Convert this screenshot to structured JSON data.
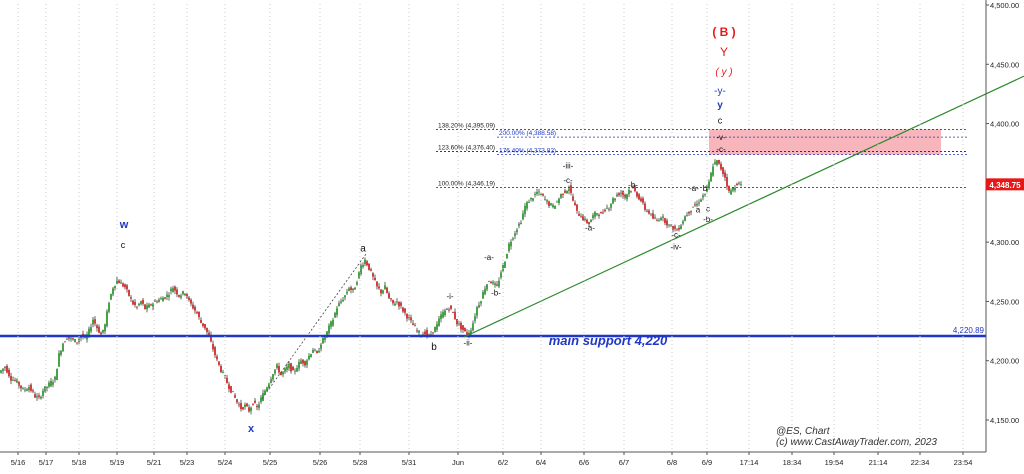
{
  "chart_data": {
    "type": "candlestick",
    "symbol": "@ES, Chart",
    "copyright": "(c) www.CastAwayTrader.com, 2023",
    "ylim": [
      4125,
      4500
    ],
    "y_ticks": [
      "4,500.00",
      "4,450.00",
      "4,400.00",
      "4,350.00",
      "4,300.00",
      "4,250.00",
      "4,200.00",
      "4,150.00"
    ],
    "x_ticks": [
      "5/16",
      "5/17",
      "5/18",
      "5/19",
      "5/21",
      "5/23",
      "5/24",
      "5/25",
      "5/26",
      "5/28",
      "5/31",
      "Jun",
      "6/2",
      "6/4",
      "6/6",
      "6/7",
      "6/8",
      "6/9",
      "17:14",
      "18:34",
      "19:54",
      "21:14",
      "22:34",
      "23:54"
    ],
    "price_path": [
      [
        0,
        4190
      ],
      [
        6,
        4195
      ],
      [
        12,
        4185
      ],
      [
        18,
        4182
      ],
      [
        24,
        4175
      ],
      [
        30,
        4178
      ],
      [
        36,
        4170
      ],
      [
        40,
        4168
      ],
      [
        44,
        4175
      ],
      [
        50,
        4180
      ],
      [
        56,
        4185
      ],
      [
        60,
        4205
      ],
      [
        64,
        4215
      ],
      [
        68,
        4220
      ],
      [
        72,
        4218
      ],
      [
        78,
        4216
      ],
      [
        82,
        4222
      ],
      [
        86,
        4218
      ],
      [
        90,
        4225
      ],
      [
        94,
        4235
      ],
      [
        98,
        4228
      ],
      [
        102,
        4222
      ],
      [
        106,
        4230
      ],
      [
        110,
        4250
      ],
      [
        114,
        4262
      ],
      [
        118,
        4268
      ],
      [
        122,
        4265
      ],
      [
        126,
        4262
      ],
      [
        130,
        4255
      ],
      [
        134,
        4248
      ],
      [
        138,
        4245
      ],
      [
        142,
        4250
      ],
      [
        146,
        4244
      ],
      [
        150,
        4246
      ],
      [
        156,
        4250
      ],
      [
        162,
        4252
      ],
      [
        168,
        4255
      ],
      [
        174,
        4262
      ],
      [
        180,
        4255
      ],
      [
        186,
        4258
      ],
      [
        190,
        4250
      ],
      [
        194,
        4245
      ],
      [
        198,
        4240
      ],
      [
        202,
        4232
      ],
      [
        206,
        4228
      ],
      [
        210,
        4220
      ],
      [
        214,
        4210
      ],
      [
        218,
        4200
      ],
      [
        222,
        4192
      ],
      [
        226,
        4185
      ],
      [
        230,
        4178
      ],
      [
        234,
        4172
      ],
      [
        238,
        4165
      ],
      [
        242,
        4160
      ],
      [
        246,
        4162
      ],
      [
        250,
        4158
      ],
      [
        254,
        4165
      ],
      [
        258,
        4160
      ],
      [
        262,
        4168
      ],
      [
        266,
        4175
      ],
      [
        270,
        4182
      ],
      [
        274,
        4190
      ],
      [
        278,
        4195
      ],
      [
        282,
        4188
      ],
      [
        286,
        4192
      ],
      [
        290,
        4196
      ],
      [
        294,
        4190
      ],
      [
        298,
        4195
      ],
      [
        302,
        4200
      ],
      [
        306,
        4198
      ],
      [
        310,
        4204
      ],
      [
        314,
        4210
      ],
      [
        318,
        4205
      ],
      [
        322,
        4215
      ],
      [
        326,
        4220
      ],
      [
        330,
        4228
      ],
      [
        334,
        4235
      ],
      [
        338,
        4245
      ],
      [
        342,
        4250
      ],
      [
        346,
        4255
      ],
      [
        350,
        4262
      ],
      [
        354,
        4258
      ],
      [
        358,
        4268
      ],
      [
        362,
        4280
      ],
      [
        366,
        4285
      ],
      [
        370,
        4278
      ],
      [
        374,
        4270
      ],
      [
        378,
        4262
      ],
      [
        382,
        4258
      ],
      [
        386,
        4262
      ],
      [
        390,
        4252
      ],
      [
        394,
        4248
      ],
      [
        398,
        4250
      ],
      [
        402,
        4245
      ],
      [
        406,
        4240
      ],
      [
        410,
        4235
      ],
      [
        414,
        4230
      ],
      [
        418,
        4225
      ],
      [
        422,
        4222
      ],
      [
        426,
        4224
      ],
      [
        430,
        4220
      ],
      [
        434,
        4225
      ],
      [
        438,
        4230
      ],
      [
        442,
        4238
      ],
      [
        446,
        4242
      ],
      [
        450,
        4245
      ],
      [
        454,
        4240
      ],
      [
        458,
        4232
      ],
      [
        462,
        4228
      ],
      [
        466,
        4224
      ],
      [
        470,
        4222
      ],
      [
        474,
        4232
      ],
      [
        478,
        4245
      ],
      [
        482,
        4252
      ],
      [
        486,
        4262
      ],
      [
        490,
        4268
      ],
      [
        494,
        4265
      ],
      [
        498,
        4262
      ],
      [
        502,
        4275
      ],
      [
        506,
        4285
      ],
      [
        510,
        4298
      ],
      [
        514,
        4305
      ],
      [
        518,
        4312
      ],
      [
        522,
        4318
      ],
      [
        526,
        4330
      ],
      [
        530,
        4335
      ],
      [
        534,
        4338
      ],
      [
        538,
        4342
      ],
      [
        542,
        4340
      ],
      [
        546,
        4336
      ],
      [
        550,
        4332
      ],
      [
        554,
        4330
      ],
      [
        558,
        4334
      ],
      [
        562,
        4340
      ],
      [
        566,
        4343
      ],
      [
        570,
        4346
      ],
      [
        574,
        4335
      ],
      [
        578,
        4325
      ],
      [
        582,
        4322
      ],
      [
        586,
        4318
      ],
      [
        590,
        4316
      ],
      [
        594,
        4322
      ],
      [
        598,
        4325
      ],
      [
        602,
        4323
      ],
      [
        606,
        4328
      ],
      [
        610,
        4330
      ],
      [
        614,
        4336
      ],
      [
        618,
        4340
      ],
      [
        622,
        4342
      ],
      [
        626,
        4338
      ],
      [
        630,
        4344
      ],
      [
        634,
        4345
      ],
      [
        638,
        4340
      ],
      [
        642,
        4335
      ],
      [
        646,
        4328
      ],
      [
        650,
        4325
      ],
      [
        654,
        4320
      ],
      [
        658,
        4318
      ],
      [
        662,
        4322
      ],
      [
        666,
        4318
      ],
      [
        670,
        4314
      ],
      [
        674,
        4312
      ],
      [
        678,
        4310
      ],
      [
        682,
        4315
      ],
      [
        686,
        4322
      ],
      [
        690,
        4326
      ],
      [
        694,
        4330
      ],
      [
        698,
        4332
      ],
      [
        702,
        4337
      ],
      [
        706,
        4341
      ],
      [
        710,
        4350
      ],
      [
        714,
        4365
      ],
      [
        718,
        4368
      ],
      [
        722,
        4362
      ],
      [
        726,
        4355
      ],
      [
        730,
        4342
      ],
      [
        734,
        4345
      ],
      [
        738,
        4350
      ],
      [
        742,
        4348
      ]
    ],
    "lines": [
      {
        "kind": "horizontal",
        "name": "main-support-line",
        "y": 4220.89,
        "label": "4,220.89",
        "color": "#1f37c8"
      },
      {
        "kind": "trendline",
        "name": "rising-trendline",
        "from": [
          464,
          4220
        ],
        "to": [
          1024,
          4440
        ],
        "color": "#2d8a2d"
      },
      {
        "kind": "dotted",
        "name": "ab-dotted-line",
        "from": [
          262,
          4168
        ],
        "to": [
          366,
          4290
        ],
        "color": "#444444"
      }
    ],
    "fib_levels": [
      {
        "label": "138.20% (4,395.09)",
        "y": 4395.09,
        "color": "#222222"
      },
      {
        "label": "200.00% (4,388.58)",
        "y": 4388.58,
        "color": "#1f37c8"
      },
      {
        "label": "123.60% (4,376.40)",
        "y": 4376.4,
        "color": "#222222"
      },
      {
        "label": "176.40% (4,373.82)",
        "y": 4373.82,
        "color": "#1f37c8"
      },
      {
        "label": "100.00% (4,346.19)",
        "y": 4346.19,
        "color": "#222222"
      }
    ],
    "target_zone": {
      "y_top": 4395.09,
      "y_bottom": 4373.82,
      "color": "#f7a8b0"
    },
    "last_price": {
      "label": "4,348.75",
      "y": 4348.75,
      "color": "#e81717"
    },
    "support_label": "main support 4,220",
    "wave_labels": [
      {
        "text": "w",
        "x": 124,
        "y": 4312,
        "color": "#1f37c8",
        "bold": true,
        "size": 11
      },
      {
        "text": "c",
        "x": 123,
        "y": 4295,
        "color": "#111111",
        "bold": false,
        "size": 9
      },
      {
        "text": "x",
        "x": 251,
        "y": 4140,
        "color": "#1f37c8",
        "bold": true,
        "size": 11
      },
      {
        "text": "a",
        "x": 363,
        "y": 4292,
        "color": "#111111",
        "bold": false,
        "size": 10
      },
      {
        "text": "b",
        "x": 434,
        "y": 4209,
        "color": "#111111",
        "bold": false,
        "size": 10
      },
      {
        "text": "-ii-",
        "x": 468,
        "y": 4213,
        "color": "#111111",
        "bold": false,
        "size": 8
      },
      {
        "text": "-i-",
        "x": 450,
        "y": 4252,
        "color": "#111111",
        "bold": false,
        "size": 8
      },
      {
        "text": "-a-",
        "x": 489,
        "y": 4285,
        "color": "#111111",
        "bold": false,
        "size": 8
      },
      {
        "text": "-b-",
        "x": 496,
        "y": 4255,
        "color": "#111111",
        "bold": false,
        "size": 8
      },
      {
        "text": "-iii-",
        "x": 568,
        "y": 4362,
        "color": "#111111",
        "bold": false,
        "size": 8
      },
      {
        "text": "-c-",
        "x": 568,
        "y": 4350,
        "color": "#111111",
        "bold": false,
        "size": 8
      },
      {
        "text": "-a-",
        "x": 590,
        "y": 4310,
        "color": "#111111",
        "bold": false,
        "size": 8
      },
      {
        "text": "-b-",
        "x": 633,
        "y": 4346,
        "color": "#111111",
        "bold": false,
        "size": 8
      },
      {
        "text": "-c-",
        "x": 676,
        "y": 4304,
        "color": "#111111",
        "bold": false,
        "size": 8
      },
      {
        "text": "-iv-",
        "x": 676,
        "y": 4294,
        "color": "#111111",
        "bold": false,
        "size": 8
      },
      {
        "text": "-a-",
        "x": 694,
        "y": 4343,
        "color": "#111111",
        "bold": false,
        "size": 8
      },
      {
        "text": "b",
        "x": 705,
        "y": 4343,
        "color": "#111111",
        "bold": false,
        "size": 8
      },
      {
        "text": "a",
        "x": 698,
        "y": 4325,
        "color": "#111111",
        "bold": false,
        "size": 8
      },
      {
        "text": "c",
        "x": 708,
        "y": 4326,
        "color": "#111111",
        "bold": false,
        "size": 8
      },
      {
        "text": "-b-",
        "x": 708,
        "y": 4317,
        "color": "#111111",
        "bold": false,
        "size": 8
      },
      {
        "text": "-v-",
        "x": 721,
        "y": 4386,
        "color": "#111111",
        "bold": false,
        "size": 8
      },
      {
        "text": "-c-",
        "x": 721,
        "y": 4376,
        "color": "#111111",
        "bold": false,
        "size": 8
      },
      {
        "text": "c",
        "x": 720,
        "y": 4400,
        "color": "#111111",
        "bold": false,
        "size": 9
      },
      {
        "text": "y",
        "x": 720,
        "y": 4413,
        "color": "#1f37c8",
        "bold": true,
        "size": 10
      },
      {
        "text": "-y-",
        "x": 720,
        "y": 4425,
        "color": "#1f37c8",
        "bold": false,
        "size": 10
      },
      {
        "text": "( y )",
        "x": 724,
        "y": 4441,
        "color": "#e81717",
        "bold": false,
        "italic": true,
        "size": 10
      },
      {
        "text": "Y",
        "x": 724,
        "y": 4457,
        "color": "#e81717",
        "bold": false,
        "size": 12
      },
      {
        "text": "( B )",
        "x": 724,
        "y": 4474,
        "color": "#e81717",
        "bold": true,
        "size": 12
      }
    ]
  }
}
